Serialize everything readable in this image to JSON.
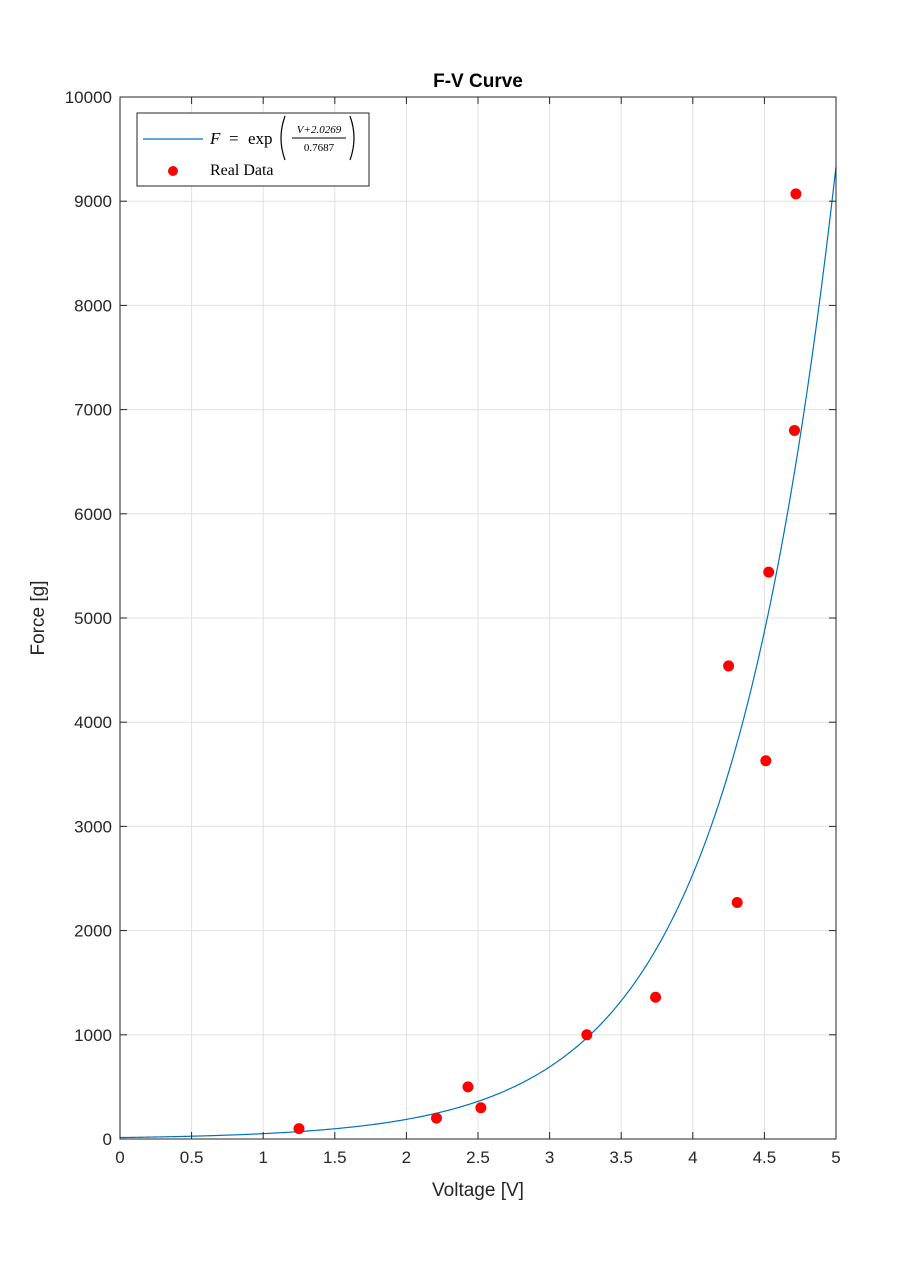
{
  "chart_data": {
    "type": "scatter",
    "title": "F-V Curve",
    "xlabel": "Voltage [V]",
    "ylabel": "Force [g]",
    "xlim": [
      0,
      5
    ],
    "ylim": [
      0,
      10000
    ],
    "xticks": [
      0,
      0.5,
      1,
      1.5,
      2,
      2.5,
      3,
      3.5,
      4,
      4.5,
      5
    ],
    "xtick_labels": [
      "0",
      "0.5",
      "1",
      "1.5",
      "2",
      "2.5",
      "3",
      "3.5",
      "4",
      "4.5",
      "5"
    ],
    "yticks": [
      0,
      1000,
      2000,
      3000,
      4000,
      5000,
      6000,
      7000,
      8000,
      9000,
      10000
    ],
    "ytick_labels": [
      "0",
      "1000",
      "2000",
      "3000",
      "4000",
      "5000",
      "6000",
      "7000",
      "8000",
      "9000",
      "10000"
    ],
    "grid": true,
    "legend_position": "top-left",
    "series": [
      {
        "kind": "line",
        "color": "#0072BD",
        "model": {
          "offset": 2.0269,
          "scale": 0.7687
        },
        "legend": {
          "lhs": "F",
          "eq": "=",
          "fn": "exp",
          "numerator": "V+2.0269",
          "denominator": "0.7687"
        }
      },
      {
        "kind": "scatter",
        "name": "Real Data",
        "color": "#FF0000",
        "x": [
          1.25,
          2.21,
          2.43,
          2.52,
          3.26,
          3.74,
          4.25,
          4.31,
          4.51,
          4.53,
          4.71,
          4.72
        ],
        "y": [
          100,
          200,
          500,
          300,
          1000,
          1360,
          4540,
          2270,
          3630,
          5440,
          6800,
          9070
        ]
      }
    ]
  }
}
